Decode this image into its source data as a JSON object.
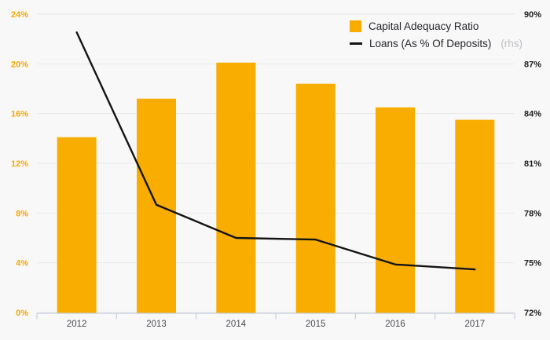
{
  "chart_data": {
    "type": "bar",
    "categories": [
      "2012",
      "2013",
      "2014",
      "2015",
      "2016",
      "2017"
    ],
    "series": [
      {
        "name": "Capital Adequacy Ratio",
        "type": "bar",
        "axis": "left",
        "color": "#F9AD00",
        "values": [
          14.1,
          17.2,
          20.1,
          18.4,
          16.5,
          15.5
        ]
      },
      {
        "name": "Loans (As % Of Deposits)",
        "suffix": "(rhs)",
        "type": "line",
        "axis": "right",
        "color": "#141414",
        "values": [
          88.9,
          78.5,
          76.5,
          76.4,
          74.9,
          74.6
        ]
      }
    ],
    "title": "",
    "xlabel": "",
    "ylabel": "",
    "left_axis": {
      "min": 0,
      "max": 24,
      "ticks": [
        "24%",
        "20%",
        "16%",
        "12%",
        "8%",
        "4%",
        "0%"
      ],
      "color": "#F9A800"
    },
    "right_axis": {
      "min": 72,
      "max": 90,
      "ticks": [
        "90%",
        "87%",
        "84%",
        "81%",
        "78%",
        "75%",
        "72%"
      ],
      "color": "#1c1c1c"
    },
    "grid": true,
    "legend_position": "top-right",
    "colors": {
      "background": "#f8f8f9",
      "gridline": "#e9e9eb",
      "axis_line": "#c6cedd",
      "x_label": "#4b4c50",
      "legend_text": "#26262a",
      "legend_rhs": "#bdbdc2"
    }
  }
}
